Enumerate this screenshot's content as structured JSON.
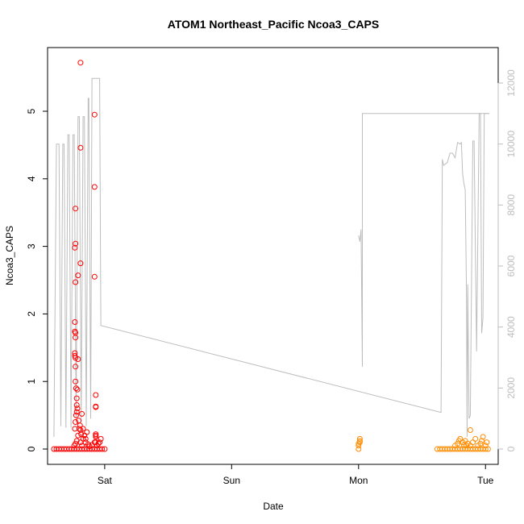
{
  "chart_data": {
    "type": "scatter",
    "title": "ATOM1 Northeast_Pacific Ncoa3_CAPS",
    "xlabel": "Date",
    "ylabel": "Ncoa3_CAPS",
    "x_ticks": [
      "Sat",
      "Sun",
      "Mon",
      "Tue"
    ],
    "x_unit": "days",
    "xlim": [
      -0.45,
      3.1
    ],
    "ylim": [
      0,
      5.72
    ],
    "y_ticks": [
      0,
      1,
      2,
      3,
      4,
      5
    ],
    "y2lim": [
      0,
      12000
    ],
    "y2_ticks": [
      0,
      2000,
      4000,
      6000,
      8000,
      10000,
      12000
    ],
    "grid": false,
    "colors": {
      "series1": "#ff0000",
      "series2": "#ff8c00",
      "line": "#bdbdbd"
    },
    "series": [
      {
        "color": "#ff0000",
        "points": [
          [
            -0.4,
            0
          ],
          [
            -0.38,
            0
          ],
          [
            -0.36,
            0
          ],
          [
            -0.34,
            0
          ],
          [
            -0.32,
            0
          ],
          [
            -0.3,
            0
          ],
          [
            -0.28,
            0
          ],
          [
            -0.26,
            0
          ],
          [
            -0.24,
            0
          ],
          [
            -0.22,
            0
          ],
          [
            -0.2,
            0
          ],
          [
            -0.18,
            0
          ],
          [
            -0.16,
            0
          ],
          [
            -0.14,
            0
          ],
          [
            -0.12,
            0
          ],
          [
            -0.1,
            0
          ],
          [
            -0.08,
            0
          ],
          [
            -0.06,
            0
          ],
          [
            -0.04,
            0
          ],
          [
            -0.02,
            0
          ],
          [
            0.0,
            0
          ],
          [
            -0.24,
            0.05
          ],
          [
            -0.23,
            0.08
          ],
          [
            -0.22,
            0.12
          ],
          [
            -0.21,
            0.2
          ],
          [
            -0.2,
            0.3
          ],
          [
            -0.19,
            0.1
          ],
          [
            -0.18,
            0.05
          ],
          [
            -0.17,
            0.15
          ],
          [
            -0.16,
            0.2
          ],
          [
            -0.15,
            0.1
          ],
          [
            -0.14,
            0.25
          ],
          [
            -0.13,
            0.07
          ],
          [
            -0.12,
            0.04
          ],
          [
            -0.1,
            0.06
          ],
          [
            -0.08,
            0.1
          ],
          [
            -0.07,
            0.2
          ],
          [
            -0.06,
            0.05
          ],
          [
            -0.05,
            0.08
          ],
          [
            -0.04,
            0.1
          ],
          [
            -0.03,
            0.15
          ],
          [
            -0.235,
            0.3
          ],
          [
            -0.23,
            0.4
          ],
          [
            -0.225,
            0.5
          ],
          [
            -0.22,
            0.55
          ],
          [
            -0.215,
            0.6
          ],
          [
            -0.22,
            0.65
          ],
          [
            -0.22,
            0.75
          ],
          [
            -0.225,
            0.9
          ],
          [
            -0.23,
            1.0
          ],
          [
            -0.23,
            1.22
          ],
          [
            -0.23,
            1.35
          ],
          [
            -0.235,
            1.38
          ],
          [
            -0.235,
            1.42
          ],
          [
            -0.23,
            1.65
          ],
          [
            -0.23,
            1.72
          ],
          [
            -0.235,
            1.74
          ],
          [
            -0.235,
            1.88
          ],
          [
            -0.21,
            1.33
          ],
          [
            -0.215,
            0.88
          ],
          [
            -0.205,
            0.42
          ],
          [
            -0.195,
            0.35
          ],
          [
            -0.19,
            0.28
          ],
          [
            -0.185,
            0.22
          ],
          [
            -0.18,
            0.52
          ],
          [
            -0.23,
            2.47
          ],
          [
            -0.21,
            2.57
          ],
          [
            -0.235,
            2.98
          ],
          [
            -0.23,
            3.04
          ],
          [
            -0.19,
            2.75
          ],
          [
            -0.23,
            3.56
          ],
          [
            -0.17,
            0.3
          ],
          [
            -0.16,
            0.2
          ],
          [
            -0.15,
            0.15
          ],
          [
            -0.07,
            0.1
          ],
          [
            -0.07,
            0.18
          ],
          [
            -0.07,
            0.22
          ],
          [
            -0.07,
            0.62
          ],
          [
            -0.07,
            0.63
          ],
          [
            -0.07,
            0.8
          ],
          [
            -0.08,
            2.55
          ],
          [
            -0.08,
            3.88
          ],
          [
            -0.08,
            4.95
          ],
          [
            -0.19,
            4.46
          ],
          [
            -0.19,
            5.72
          ]
        ]
      },
      {
        "color": "#ff8c00",
        "points": [
          [
            2.0,
            0
          ],
          [
            2.0,
            0.05
          ],
          [
            2.0,
            0.08
          ],
          [
            2.01,
            0.1
          ],
          [
            2.01,
            0.12
          ],
          [
            2.01,
            0.15
          ],
          [
            2.62,
            0
          ],
          [
            2.64,
            0
          ],
          [
            2.66,
            0
          ],
          [
            2.68,
            0
          ],
          [
            2.7,
            0
          ],
          [
            2.72,
            0
          ],
          [
            2.74,
            0
          ],
          [
            2.76,
            0
          ],
          [
            2.78,
            0
          ],
          [
            2.8,
            0
          ],
          [
            2.82,
            0
          ],
          [
            2.84,
            0
          ],
          [
            2.86,
            0
          ],
          [
            2.88,
            0
          ],
          [
            2.9,
            0
          ],
          [
            2.92,
            0
          ],
          [
            2.94,
            0
          ],
          [
            2.96,
            0
          ],
          [
            2.98,
            0
          ],
          [
            3.0,
            0
          ],
          [
            3.02,
            0
          ],
          [
            2.76,
            0.05
          ],
          [
            2.78,
            0.08
          ],
          [
            2.79,
            0.12
          ],
          [
            2.8,
            0.15
          ],
          [
            2.82,
            0.1
          ],
          [
            2.83,
            0.06
          ],
          [
            2.84,
            0.12
          ],
          [
            2.86,
            0.08
          ],
          [
            2.88,
            0.05
          ],
          [
            2.9,
            0.1
          ],
          [
            2.92,
            0.15
          ],
          [
            2.94,
            0.05
          ],
          [
            2.96,
            0.08
          ],
          [
            2.97,
            0.12
          ],
          [
            2.98,
            0.18
          ],
          [
            3.0,
            0.05
          ],
          [
            3.01,
            0.1
          ],
          [
            2.88,
            0.28
          ],
          [
            2.85,
            0.05
          ]
        ]
      }
    ],
    "line": [
      [
        -0.4,
        400
      ],
      [
        -0.38,
        10000
      ],
      [
        -0.36,
        10000
      ],
      [
        -0.345,
        750
      ],
      [
        -0.33,
        10000
      ],
      [
        -0.32,
        10000
      ],
      [
        -0.305,
        700
      ],
      [
        -0.29,
        10300
      ],
      [
        -0.28,
        10300
      ],
      [
        -0.265,
        700
      ],
      [
        -0.25,
        10300
      ],
      [
        -0.24,
        10300
      ],
      [
        -0.225,
        1000
      ],
      [
        -0.21,
        10900
      ],
      [
        -0.2,
        10900
      ],
      [
        -0.185,
        900
      ],
      [
        -0.17,
        10900
      ],
      [
        -0.16,
        10900
      ],
      [
        -0.145,
        750
      ],
      [
        -0.13,
        11500
      ],
      [
        -0.125,
        11500
      ],
      [
        -0.11,
        1000
      ],
      [
        -0.1,
        12150
      ],
      [
        -0.04,
        12150
      ],
      [
        -0.03,
        4050
      ],
      [
        2.65,
        1200
      ],
      [
        2.66,
        9500
      ],
      [
        2.67,
        9300
      ],
      [
        2.7,
        9400
      ],
      [
        2.72,
        9700
      ],
      [
        2.74,
        9700
      ],
      [
        2.76,
        9550
      ],
      [
        2.78,
        10050
      ],
      [
        2.8,
        10000
      ],
      [
        2.81,
        10050
      ],
      [
        2.82,
        9000
      ],
      [
        2.83,
        8700
      ],
      [
        2.84,
        8500
      ],
      [
        2.85,
        5200
      ],
      [
        2.855,
        400
      ],
      [
        2.86,
        5400
      ],
      [
        2.87,
        1000
      ],
      [
        2.88,
        1100
      ],
      [
        2.89,
        5400
      ],
      [
        2.9,
        10100
      ],
      [
        2.91,
        10100
      ],
      [
        2.93,
        3200
      ],
      [
        2.95,
        11000
      ],
      [
        2.96,
        11000
      ],
      [
        2.97,
        3800
      ],
      [
        2.98,
        4300
      ],
      [
        2.99,
        11000
      ],
      [
        3.03,
        11000
      ]
    ],
    "line_mon": [
      [
        2.0,
        7000
      ],
      [
        2.01,
        6800
      ],
      [
        2.02,
        7200
      ],
      [
        2.03,
        2700
      ],
      [
        2.03,
        11000
      ],
      [
        3.03,
        11000
      ]
    ]
  }
}
